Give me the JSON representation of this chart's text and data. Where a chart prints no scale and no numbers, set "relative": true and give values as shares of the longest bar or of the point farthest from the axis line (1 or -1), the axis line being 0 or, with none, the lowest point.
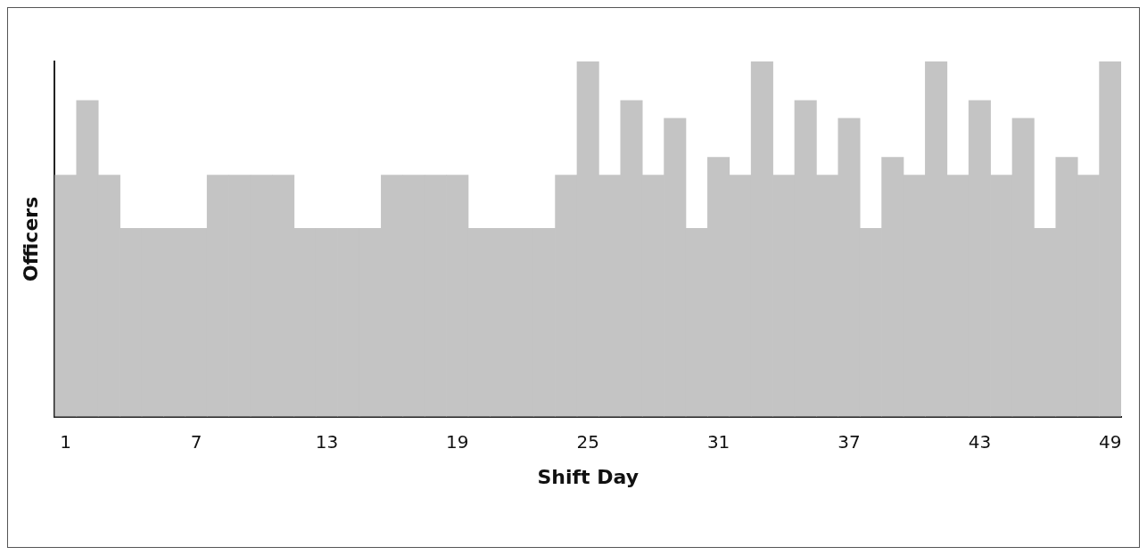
{
  "chart_data": {
    "type": "bar",
    "xlabel": "Shift Day",
    "ylabel": "Officers",
    "relative": true,
    "grid": false,
    "legend": false,
    "categories": [
      "1",
      null,
      null,
      null,
      null,
      null,
      "7",
      null,
      null,
      null,
      null,
      null,
      "13",
      null,
      null,
      null,
      null,
      null,
      "19",
      null,
      null,
      null,
      null,
      null,
      "25",
      null,
      null,
      null,
      null,
      null,
      "31",
      null,
      null,
      null,
      null,
      null,
      "37",
      null,
      null,
      null,
      null,
      null,
      "43",
      null,
      null,
      null,
      null,
      null,
      "49"
    ],
    "values": [
      0.68,
      0.89,
      0.68,
      0.53,
      0.53,
      0.53,
      0.53,
      0.68,
      0.68,
      0.68,
      0.68,
      0.53,
      0.53,
      0.53,
      0.53,
      0.68,
      0.68,
      0.68,
      0.68,
      0.53,
      0.53,
      0.53,
      0.53,
      0.68,
      1,
      0.68,
      0.89,
      0.68,
      0.84,
      0.53,
      0.73,
      0.68,
      1,
      0.68,
      0.89,
      0.68,
      0.84,
      0.53,
      0.73,
      0.68,
      1,
      0.68,
      0.89,
      0.68,
      0.84,
      0.53,
      0.73,
      0.68,
      1
    ],
    "color": "#c4c4c4"
  }
}
